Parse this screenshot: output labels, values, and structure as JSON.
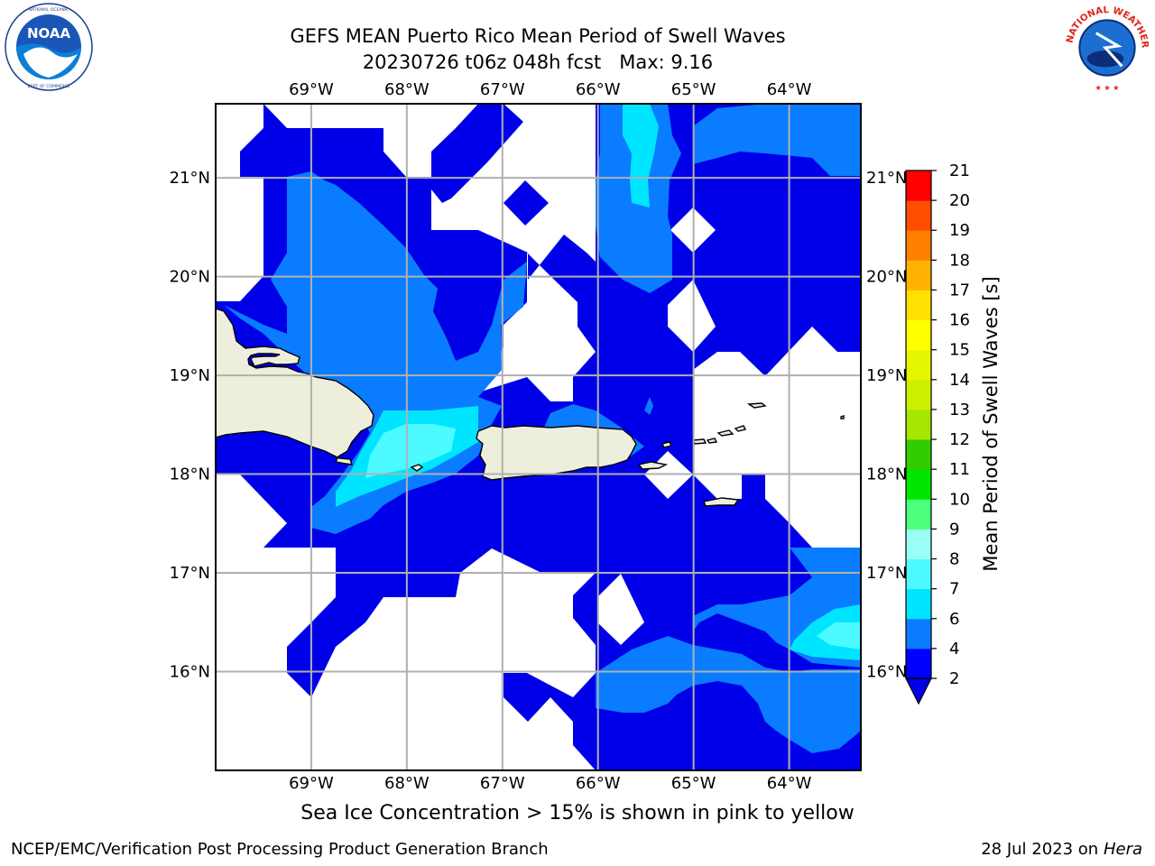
{
  "header": {
    "title_line1": "GEFS MEAN Puerto Rico Mean Period of Swell Waves",
    "title_line2": "20230726 t06z 048h fcst   Max: 9.16"
  },
  "logos": {
    "left": {
      "name": "NOARA-logo",
      "text": "NOAA",
      "ring_text": "NATIONAL OCEANIC AND ATMOSPHERIC ADMINISTRATION · U.S. DEPARTMENT OF COMMERCE"
    },
    "right": {
      "name": "NWS-logo",
      "ring_text": "NATIONAL WEATHER SERVICE"
    }
  },
  "map": {
    "lon_labels": [
      "69°W",
      "68°W",
      "67°W",
      "66°W",
      "65°W",
      "64°W"
    ],
    "lon_values": [
      -69,
      -68,
      -67,
      -66,
      -65,
      -64
    ],
    "lat_labels": [
      "21°N",
      "20°N",
      "19°N",
      "18°N",
      "17°N",
      "16°N"
    ],
    "lat_values": [
      21,
      20,
      19,
      18,
      17,
      16
    ],
    "extent": {
      "lon_min": -70,
      "lon_max": -63.25,
      "lat_min": 15,
      "lat_max": 21.75
    },
    "grid": true,
    "land_color": "#eeeedd",
    "coast_color": "#000000"
  },
  "colorbar": {
    "label": "Mean Period of Swell Waves [s]",
    "ticks": [
      "21",
      "20",
      "19",
      "18",
      "17",
      "16",
      "15",
      "14",
      "13",
      "12",
      "11",
      "10",
      "9",
      "8",
      "7",
      "6",
      "4",
      "2"
    ],
    "levels": [
      2,
      4,
      6,
      7,
      8,
      9,
      10,
      11,
      12,
      13,
      14,
      15,
      16,
      17,
      18,
      19,
      20,
      21
    ],
    "colors": [
      "#0000ff",
      "#0a7cff",
      "#00e5ff",
      "#4dfaff",
      "#99fff5",
      "#4dff7a",
      "#00e600",
      "#33cc00",
      "#a6e600",
      "#ccf000",
      "#e6f500",
      "#ffff00",
      "#ffe000",
      "#ffb300",
      "#ff8000",
      "#ff4d00",
      "#ff0000"
    ],
    "under_color": "#0000e8"
  },
  "chart_data": {
    "type": "heatmap",
    "title": "GEFS MEAN Puerto Rico Mean Period of Swell Waves",
    "subtitle": "20230726 t06z 048h fcst   Max: 9.16",
    "max_value": 9.16,
    "units": "s",
    "lon_range": [
      -70,
      -63.25
    ],
    "lat_range": [
      15,
      21.75
    ]
  },
  "footer": {
    "ice_note": "Sea Ice Concentration > 15% is shown in pink to yellow",
    "left": "NCEP/EMC/Verification Post Processing Product Generation Branch",
    "date": "28 Jul 2023 on ",
    "host": "Hera"
  }
}
